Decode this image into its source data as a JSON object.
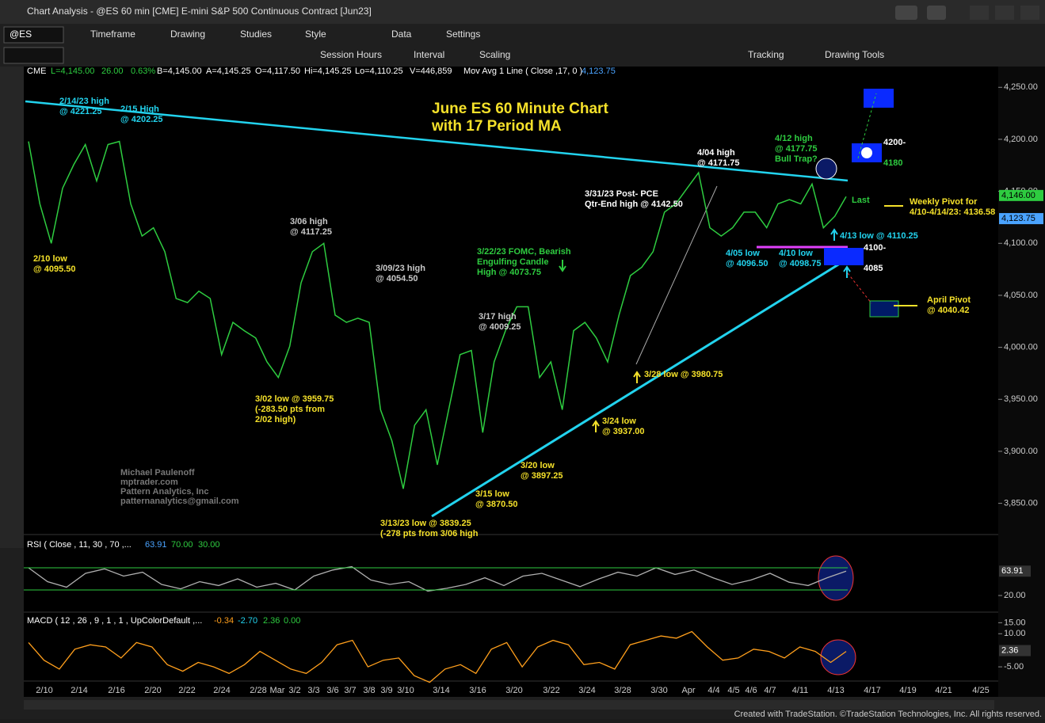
{
  "window": {
    "title": "Chart Analysis - @ES 60 min [CME] E-mini S&P 500 Continuous Contract [Jun23]",
    "symbol": "@ES"
  },
  "toolbar": {
    "row1": [
      "Timeframe",
      "Drawing",
      "Studies",
      "Style",
      "Data",
      "Settings"
    ],
    "row2": [
      "Session Hours",
      "Interval",
      "Scaling",
      "Tracking",
      "Drawing Tools"
    ]
  },
  "info": [
    "CME",
    "L=4,145.00",
    "26.00",
    "0.63%",
    "B=4,145.00",
    "A=4,145.25",
    "O=4,117.50",
    "Hi=4,145.25",
    "Lo=4,110.25",
    "V=446,859",
    "Mov Avg 1 Line ( Close ,17, 0 )",
    "4,123.75"
  ],
  "chart_data": {
    "type": "line",
    "series": [
      {
        "color": "#2ecc40",
        "values": [
          4198,
          4138,
          4100,
          4153,
          4176,
          4195,
          4160,
          4195,
          4198,
          4138,
          4107,
          4115,
          4092,
          4047,
          4043,
          4054,
          4047,
          3993,
          4024,
          4016,
          4009,
          3986,
          3971,
          4001,
          4062,
          4092,
          4100,
          4031,
          4024,
          4028,
          4024,
          3940,
          3910,
          3864,
          3925,
          3940,
          3887,
          3940,
          3993,
          3997,
          3918,
          3986,
          4016,
          4039,
          4039,
          3971,
          3986,
          3940,
          4016,
          4024,
          4009,
          3986,
          4031,
          4069,
          4077,
          4092,
          4130,
          4138,
          4153,
          4168,
          4115,
          4107,
          4115,
          4130,
          4130,
          4115,
          4138,
          4142,
          4138,
          4157,
          4115,
          4126,
          4145
        ]
      }
    ],
    "ylim": [
      3820,
      4270
    ],
    "yticks": [
      {
        "value": 4250,
        "label": "4,250.00"
      },
      {
        "value": 4200,
        "label": "4,200.00"
      },
      {
        "value": 4150,
        "label": "4,150.00"
      },
      {
        "value": 4100,
        "label": "4,100.00"
      },
      {
        "value": 4050,
        "label": "4,050.00"
      },
      {
        "value": 4000,
        "label": "4,000.00"
      },
      {
        "value": 3950,
        "label": "3,950.00"
      },
      {
        "value": 3900,
        "label": "3,900.00"
      },
      {
        "value": 3850,
        "label": "3,850.00"
      }
    ],
    "axis_boxes": [
      {
        "value": 4146,
        "label": "4,146.00",
        "color": "#2ecc40"
      },
      {
        "value": 4123.75,
        "label": "4,123.75",
        "color": "#4aa3ff"
      }
    ],
    "x_labels": [
      "2/10",
      "2/14",
      "2/16",
      "2/20",
      "2/22",
      "2/24",
      "2/28",
      "Mar",
      "3/2",
      "3/3",
      "3/6",
      "3/7",
      "3/8",
      "3/9",
      "3/10",
      "3/14",
      "3/16",
      "3/20",
      "3/22",
      "3/24",
      "3/28",
      "3/30",
      "Apr",
      "4/4",
      "4/5",
      "4/6",
      "4/7",
      "4/11",
      "4/13",
      "4/17",
      "4/19",
      "4/21",
      "4/25"
    ],
    "annotations": [
      {
        "lines": [
          "2/14/23 high",
          "@ 4221.25"
        ],
        "color": "#22d3ee"
      },
      {
        "lines": [
          "2/15 High",
          "@ 4202.25"
        ],
        "color": "#22d3ee"
      },
      {
        "lines": [
          "2/10 low",
          "@ 4095.50"
        ],
        "color": "#f5e12a"
      },
      {
        "lines": [
          "June ES 60 Minute Chart",
          "with 17 Period MA"
        ],
        "color": "#f5e12a"
      },
      {
        "lines": [
          "3/06 high",
          "@ 4117.25"
        ],
        "color": "#c8c8c8"
      },
      {
        "lines": [
          "3/09/23 high",
          "@ 4054.50"
        ],
        "color": "#c8c8c8"
      },
      {
        "lines": [
          "3/02 low @ 3959.75",
          "(-283.50 pts from",
          "2/02 high)"
        ],
        "color": "#f5e12a"
      },
      {
        "lines": [
          "3/22/23 FOMC, Bearish",
          "Engulfing Candle",
          "High @ 4073.75"
        ],
        "color": "#2ecc40"
      },
      {
        "lines": [
          "3/17 high",
          "@ 4009.25"
        ],
        "color": "#c8c8c8"
      },
      {
        "lines": [
          "3/20 low",
          "@ 3897.25"
        ],
        "color": "#f5e12a"
      },
      {
        "lines": [
          "3/15 low",
          "@ 3870.50"
        ],
        "color": "#f5e12a"
      },
      {
        "lines": [
          "3/13/23 low @ 3839.25",
          "(-278 pts from 3/06 high"
        ],
        "color": "#f5e12a"
      },
      {
        "lines": [
          "3/24 low",
          "@ 3937.00"
        ],
        "color": "#f5e12a"
      },
      {
        "lines": [
          "3/28 low @ 3980.75"
        ],
        "color": "#f5e12a"
      },
      {
        "lines": [
          "3/31/23 Post- PCE",
          "Qtr-End high @ 4142.50"
        ],
        "color": "#ffffff"
      },
      {
        "lines": [
          "4/04 high",
          "@ 4171.75"
        ],
        "color": "#ffffff"
      },
      {
        "lines": [
          "4/12 high",
          "@ 4177.75",
          "Bull Trap?"
        ],
        "color": "#2ecc40"
      },
      {
        "lines": [
          "4200-"
        ],
        "color": "#ffffff"
      },
      {
        "lines": [
          "4180"
        ],
        "color": "#2ecc40"
      },
      {
        "lines": [
          "Last"
        ],
        "color": "#2ecc40"
      },
      {
        "lines": [
          "Weekly Pivot for",
          "4/10-4/14/23: 4136.58"
        ],
        "color": "#f5e12a"
      },
      {
        "lines": [
          "4/13 low @ 4110.25"
        ],
        "color": "#22d3ee"
      },
      {
        "lines": [
          "4/05 low",
          "@ 4096.50"
        ],
        "color": "#22d3ee"
      },
      {
        "lines": [
          "4/10 low",
          "@ 4098.75"
        ],
        "color": "#22d3ee"
      },
      {
        "lines": [
          "4100-"
        ],
        "color": "#ffffff"
      },
      {
        "lines": [
          "4085"
        ],
        "color": "#ffffff"
      },
      {
        "lines": [
          "April Pivot",
          "@ 4040.42"
        ],
        "color": "#f5e12a"
      },
      {
        "lines": [
          "Michael Paulenoff",
          "mptrader.com",
          "Pattern Analytics, Inc",
          "patternanalytics@gmail.com"
        ],
        "color": "#777777"
      }
    ]
  },
  "rsi": {
    "header": "RSI ( Close , 11, 30 , 70 ,...",
    "last": "63.91",
    "upper": {
      "value": 70,
      "label": "70.00"
    },
    "lower": {
      "value": 30,
      "label": "30.00"
    },
    "ylim": [
      0,
      100
    ],
    "yticks": [
      {
        "value": 20,
        "label": "20.00"
      }
    ],
    "box": {
      "value": 63.91,
      "label": "63.91"
    },
    "color": "#b0b0b0",
    "values": [
      70,
      45,
      35,
      60,
      68,
      55,
      62,
      40,
      32,
      45,
      38,
      50,
      35,
      42,
      30,
      55,
      66,
      72,
      48,
      40,
      45,
      28,
      33,
      40,
      52,
      38,
      55,
      60,
      48,
      36,
      50,
      62,
      55,
      70,
      58,
      66,
      52,
      40,
      48,
      60,
      44,
      38,
      52,
      64
    ]
  },
  "macd": {
    "header": "MACD ( 12 , 26 , 9 , 1 , 1 , UpColorDefault ,...",
    "readings": [
      {
        "text": "-0.34",
        "color": "#ff9f1c"
      },
      {
        "text": "-2.70",
        "color": "#22d3ee"
      },
      {
        "text": "2.36",
        "color": "#2ecc40"
      },
      {
        "text": "0.00",
        "color": "#2ecc40"
      }
    ],
    "ylim": [
      -10,
      18
    ],
    "yticks": [
      {
        "value": 15,
        "label": "15.00"
      },
      {
        "value": 10,
        "label": "10.00"
      },
      {
        "value": -5,
        "label": "-5.00"
      }
    ],
    "box": {
      "value": 2.36,
      "label": "2.36"
    },
    "color": "#ff9f1c",
    "values": [
      6,
      -2,
      -6,
      3,
      5,
      4,
      -1,
      6,
      4,
      -4,
      -7,
      -3,
      -5,
      -8,
      -4,
      2,
      -2,
      -6,
      -8,
      -3,
      5,
      7,
      -5,
      -2,
      -1,
      -9,
      -12,
      -6,
      -4,
      -8,
      3,
      6,
      -5,
      4,
      7,
      5,
      -4,
      -3,
      -6,
      5,
      7,
      9,
      8,
      11,
      4,
      -2,
      -1,
      3,
      2,
      -1,
      4,
      2,
      -3,
      2
    ]
  },
  "footer": "Created with TradeStation. ©TradeStation Technologies, Inc. All rights reserved."
}
